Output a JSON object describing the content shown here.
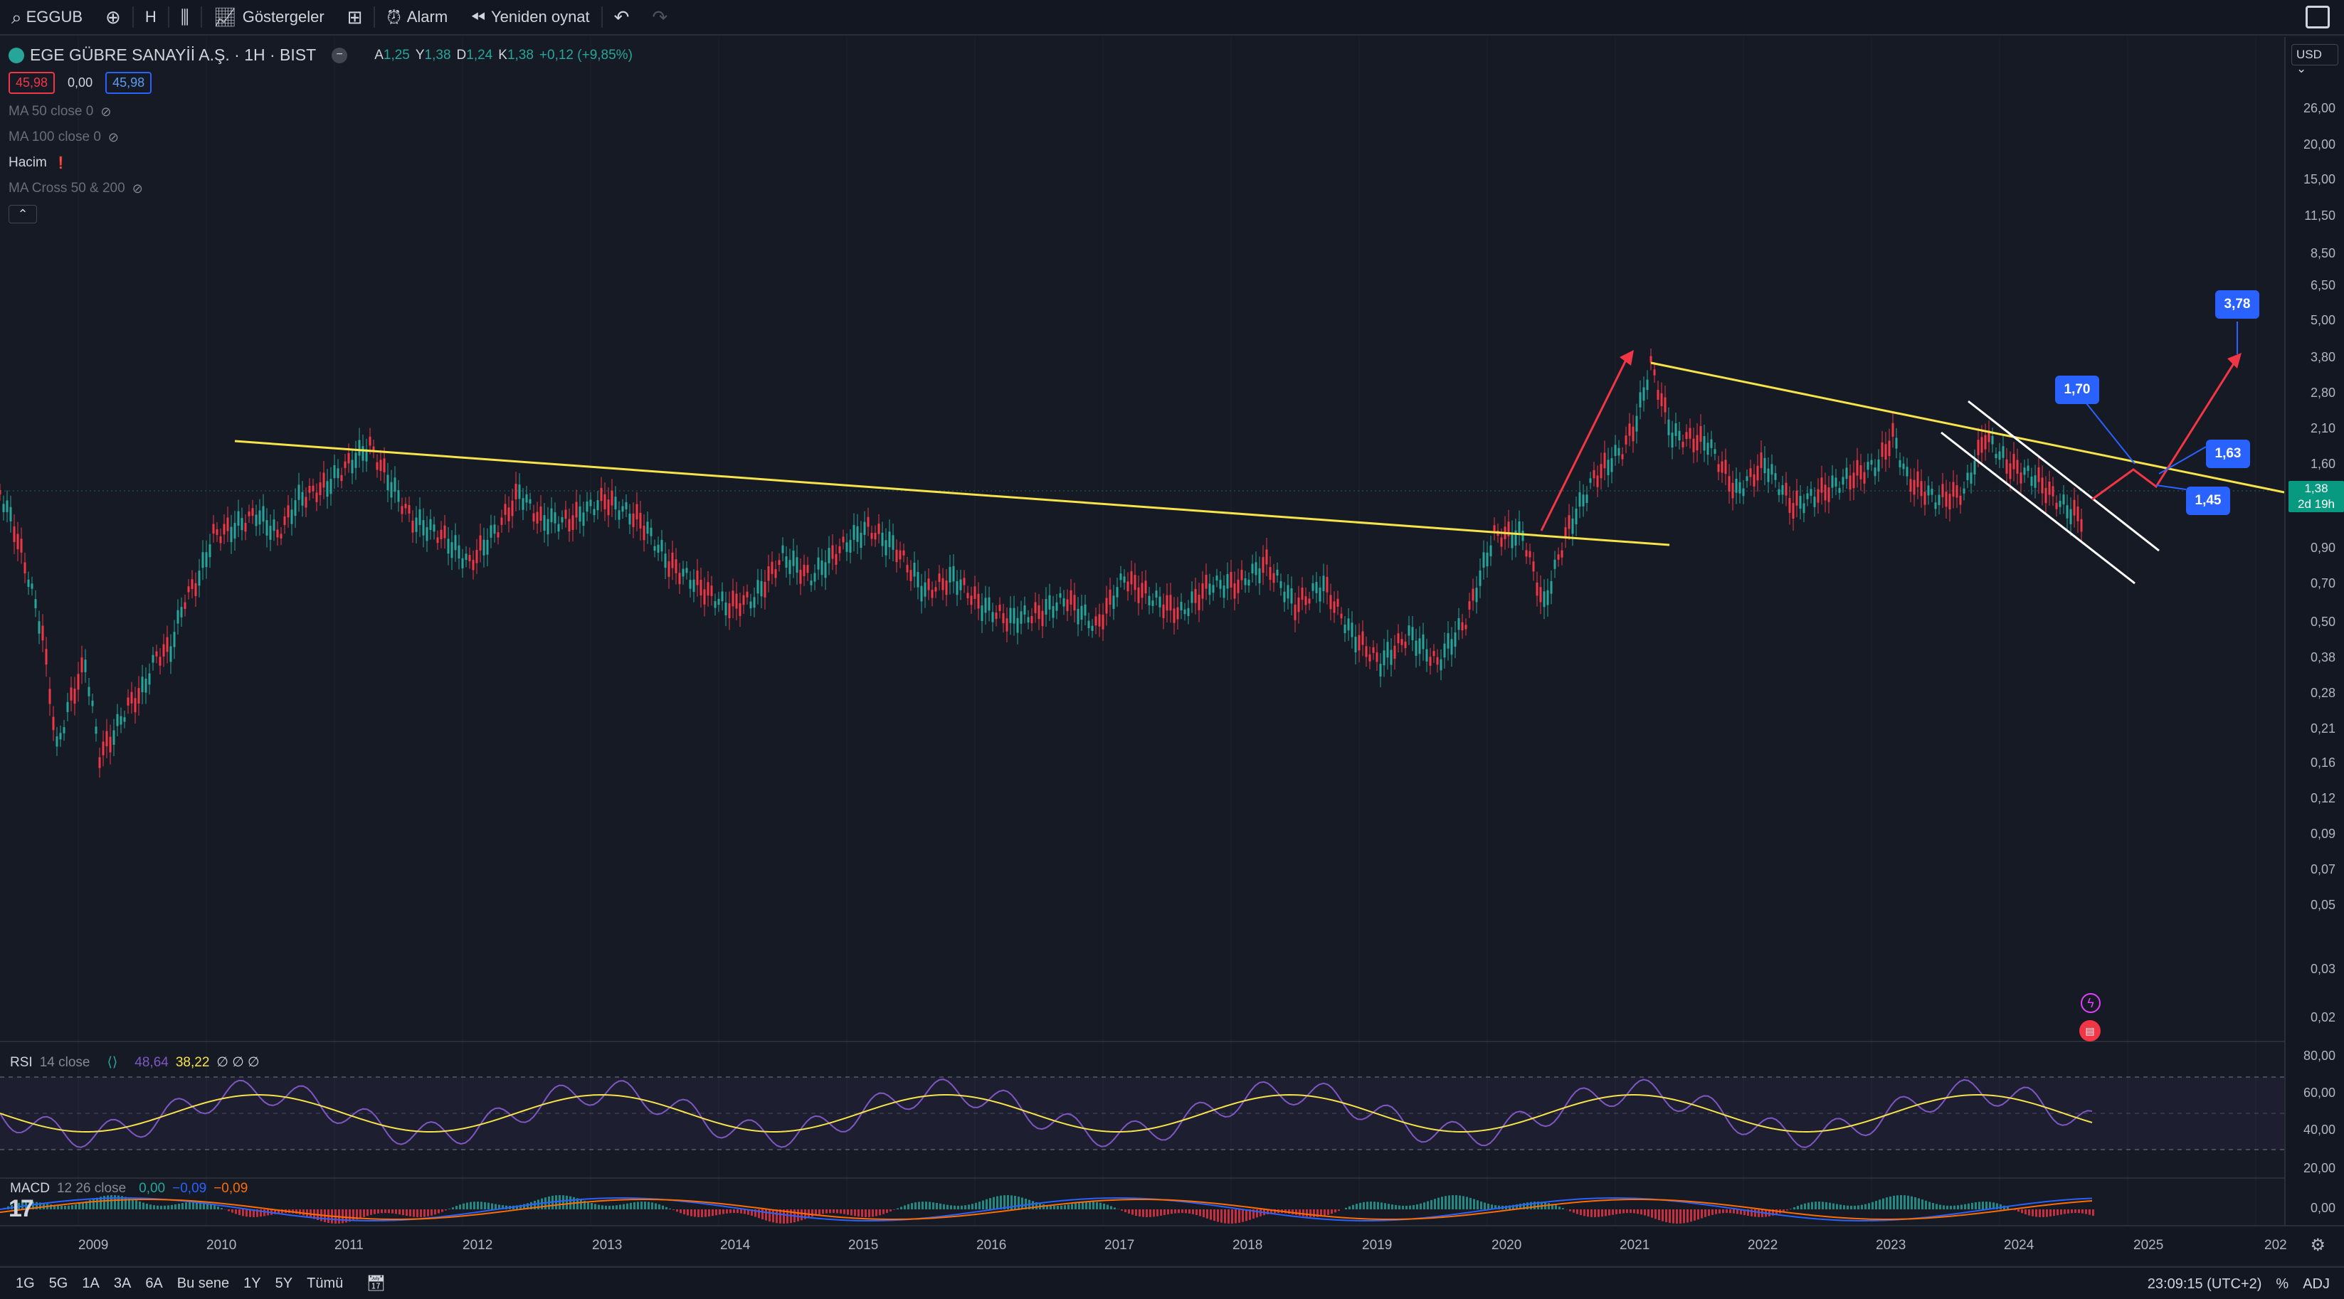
{
  "toolbar": {
    "symbol": "EGGUB",
    "interval": "H",
    "indicators_label": "Göstergeler",
    "alarm_label": "Alarm",
    "replay_label": "Yeniden oynat"
  },
  "legend": {
    "title": "EGE GÜBRE SANAYİİ A.Ş. · 1H · BIST",
    "ohlc": {
      "a_label": "A",
      "a": "1,25",
      "y_label": "Y",
      "y": "1,38",
      "d_label": "D",
      "d": "1,24",
      "k_label": "K",
      "k": "1,38",
      "change": "+0,12 (+9,85%)"
    },
    "bid": "45,98",
    "spread": "0,00",
    "ask": "45,98",
    "indicators": [
      {
        "label": "MA 50 close 0",
        "hidden": true
      },
      {
        "label": "MA 100 close 0",
        "hidden": true
      },
      {
        "label": "Hacim",
        "hidden": false
      },
      {
        "label": "MA Cross 50 & 200",
        "hidden": true
      }
    ]
  },
  "price_axis": {
    "currency": "USD",
    "labels": [
      "26,00",
      "20,00",
      "15,00",
      "11,50",
      "8,50",
      "6,50",
      "5,00",
      "3,80",
      "2,80",
      "2,10",
      "1,60",
      "0,90",
      "0,70",
      "0,50",
      "0,38",
      "0,28",
      "0,21",
      "0,16",
      "0,12",
      "0,09",
      "0,07",
      "0,05",
      "0,03",
      "0,02"
    ],
    "current_price": "1,38",
    "countdown": "2d 19h"
  },
  "callouts": [
    "3,78",
    "1,70",
    "1,63",
    "1,45"
  ],
  "rsi": {
    "label": "RSI",
    "params": "14 close",
    "v1": "48,64",
    "v2": "38,22",
    "na": "∅ ∅ ∅",
    "axis": [
      "80,00",
      "60,00",
      "40,00",
      "20,00"
    ]
  },
  "macd": {
    "label": "MACD",
    "params": "12 26 close",
    "v1": "0,00",
    "v2": "−0,09",
    "v3": "−0,09",
    "axis": [
      "0,00"
    ]
  },
  "time_axis": [
    "2009",
    "2010",
    "2011",
    "2012",
    "2013",
    "2014",
    "2015",
    "2016",
    "2017",
    "2018",
    "2019",
    "2020",
    "2021",
    "2022",
    "2023",
    "2024",
    "2025",
    "202"
  ],
  "bottom": {
    "ranges": [
      "1G",
      "5G",
      "1A",
      "3A",
      "6A",
      "Bu sene",
      "1Y",
      "5Y",
      "Tümü"
    ],
    "clock": "23:09:15 (UTC+2)",
    "mode": "%",
    "adj": "ADJ"
  },
  "colors": {
    "up": "#26a69a",
    "down": "#f23645",
    "trend": "#f7e34a",
    "bg": "#161a25",
    "accent": "#2962ff"
  }
}
